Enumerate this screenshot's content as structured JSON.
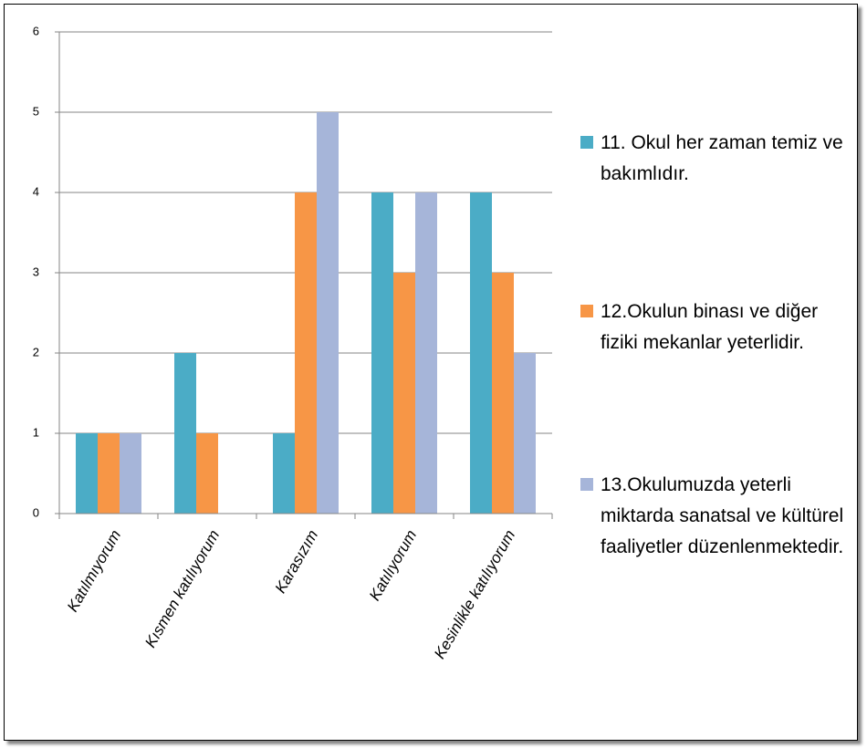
{
  "chart_data": {
    "type": "bar",
    "categories": [
      "Katılmıyorum",
      "Kısmen katılıyorum",
      "Karasızım",
      "Katılıyorum",
      "Kesinlikle katılıyorum"
    ],
    "series": [
      {
        "name": "11. Okul her zaman temiz ve bakımlıdır.",
        "color": "#4bacc6",
        "values": [
          1,
          2,
          1,
          4,
          4
        ]
      },
      {
        "name": "12.Okulun binası ve diğer fiziki mekanlar yeterlidir.",
        "color": "#f79646",
        "values": [
          1,
          1,
          4,
          3,
          3
        ]
      },
      {
        "name": "13.Okulumuzda yeterli miktarda sanatsal ve kültürel faaliyetler düzenlenmektedir.",
        "color": "#a6b5d9",
        "values": [
          1,
          0,
          5,
          4,
          2
        ]
      }
    ],
    "ylim": [
      0,
      6
    ],
    "yticks": [
      0,
      1,
      2,
      3,
      4,
      5,
      6
    ],
    "grid": true,
    "legend": "right"
  }
}
